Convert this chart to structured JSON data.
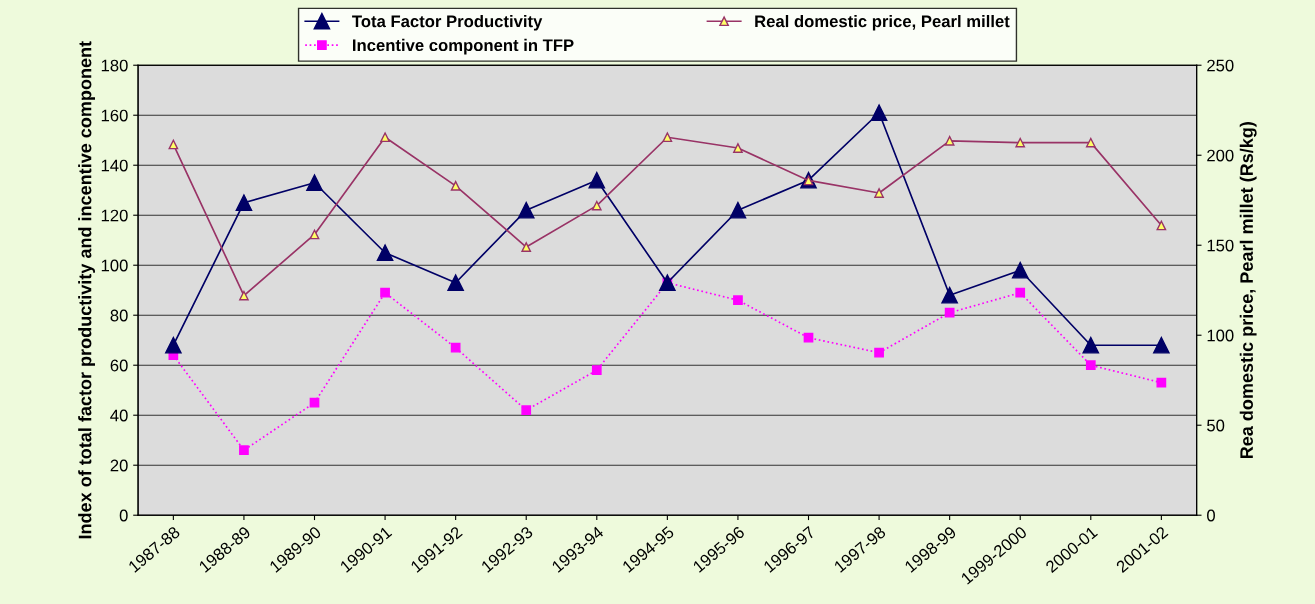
{
  "chart_data": {
    "type": "line",
    "xlabel": null,
    "ylabel": "Index of total factor productivity and incentive component",
    "y2label": "Rea domestic price, Pearl millet (Rs/kg)",
    "categories": [
      "1987-88",
      "1988-89",
      "1989-90",
      "1990-91",
      "1991-92",
      "1992-93",
      "1993-94",
      "1994-95",
      "1995-96",
      "1996-97",
      "1997-98",
      "1998-99",
      "1999-2000",
      "2000-01",
      "2001-02"
    ],
    "series": [
      {
        "name": "Tota Factor Productivity",
        "color": "#000066",
        "marker": "triangle",
        "line_style": "solid",
        "values": [
          68,
          125,
          133,
          105,
          93,
          122,
          134,
          93,
          122,
          134,
          161,
          88,
          98,
          68,
          68
        ]
      },
      {
        "name": "Incentive component in TFP",
        "color": "#ff00ff",
        "marker": "square",
        "line_style": "dotted",
        "values": [
          64,
          26,
          45,
          89,
          67,
          42,
          58,
          93,
          86,
          71,
          65,
          81,
          89,
          60,
          53
        ]
      },
      {
        "name": "Real domestic price, Pearl millet",
        "color": "#993366",
        "marker": "triangle",
        "line_style": "solid",
        "axis": "y2",
        "values": [
          206,
          122,
          156,
          210,
          183,
          149,
          172,
          210,
          204,
          186,
          179,
          208,
          207,
          207,
          161
        ]
      }
    ],
    "ylim": [
      0,
      180
    ],
    "yticks": [
      0,
      20,
      40,
      60,
      80,
      100,
      120,
      140,
      160,
      180
    ],
    "y2lim": [
      0,
      250
    ],
    "y2ticks": [
      0,
      50,
      100,
      150,
      200,
      250
    ],
    "grid": "y",
    "legend": "top"
  }
}
